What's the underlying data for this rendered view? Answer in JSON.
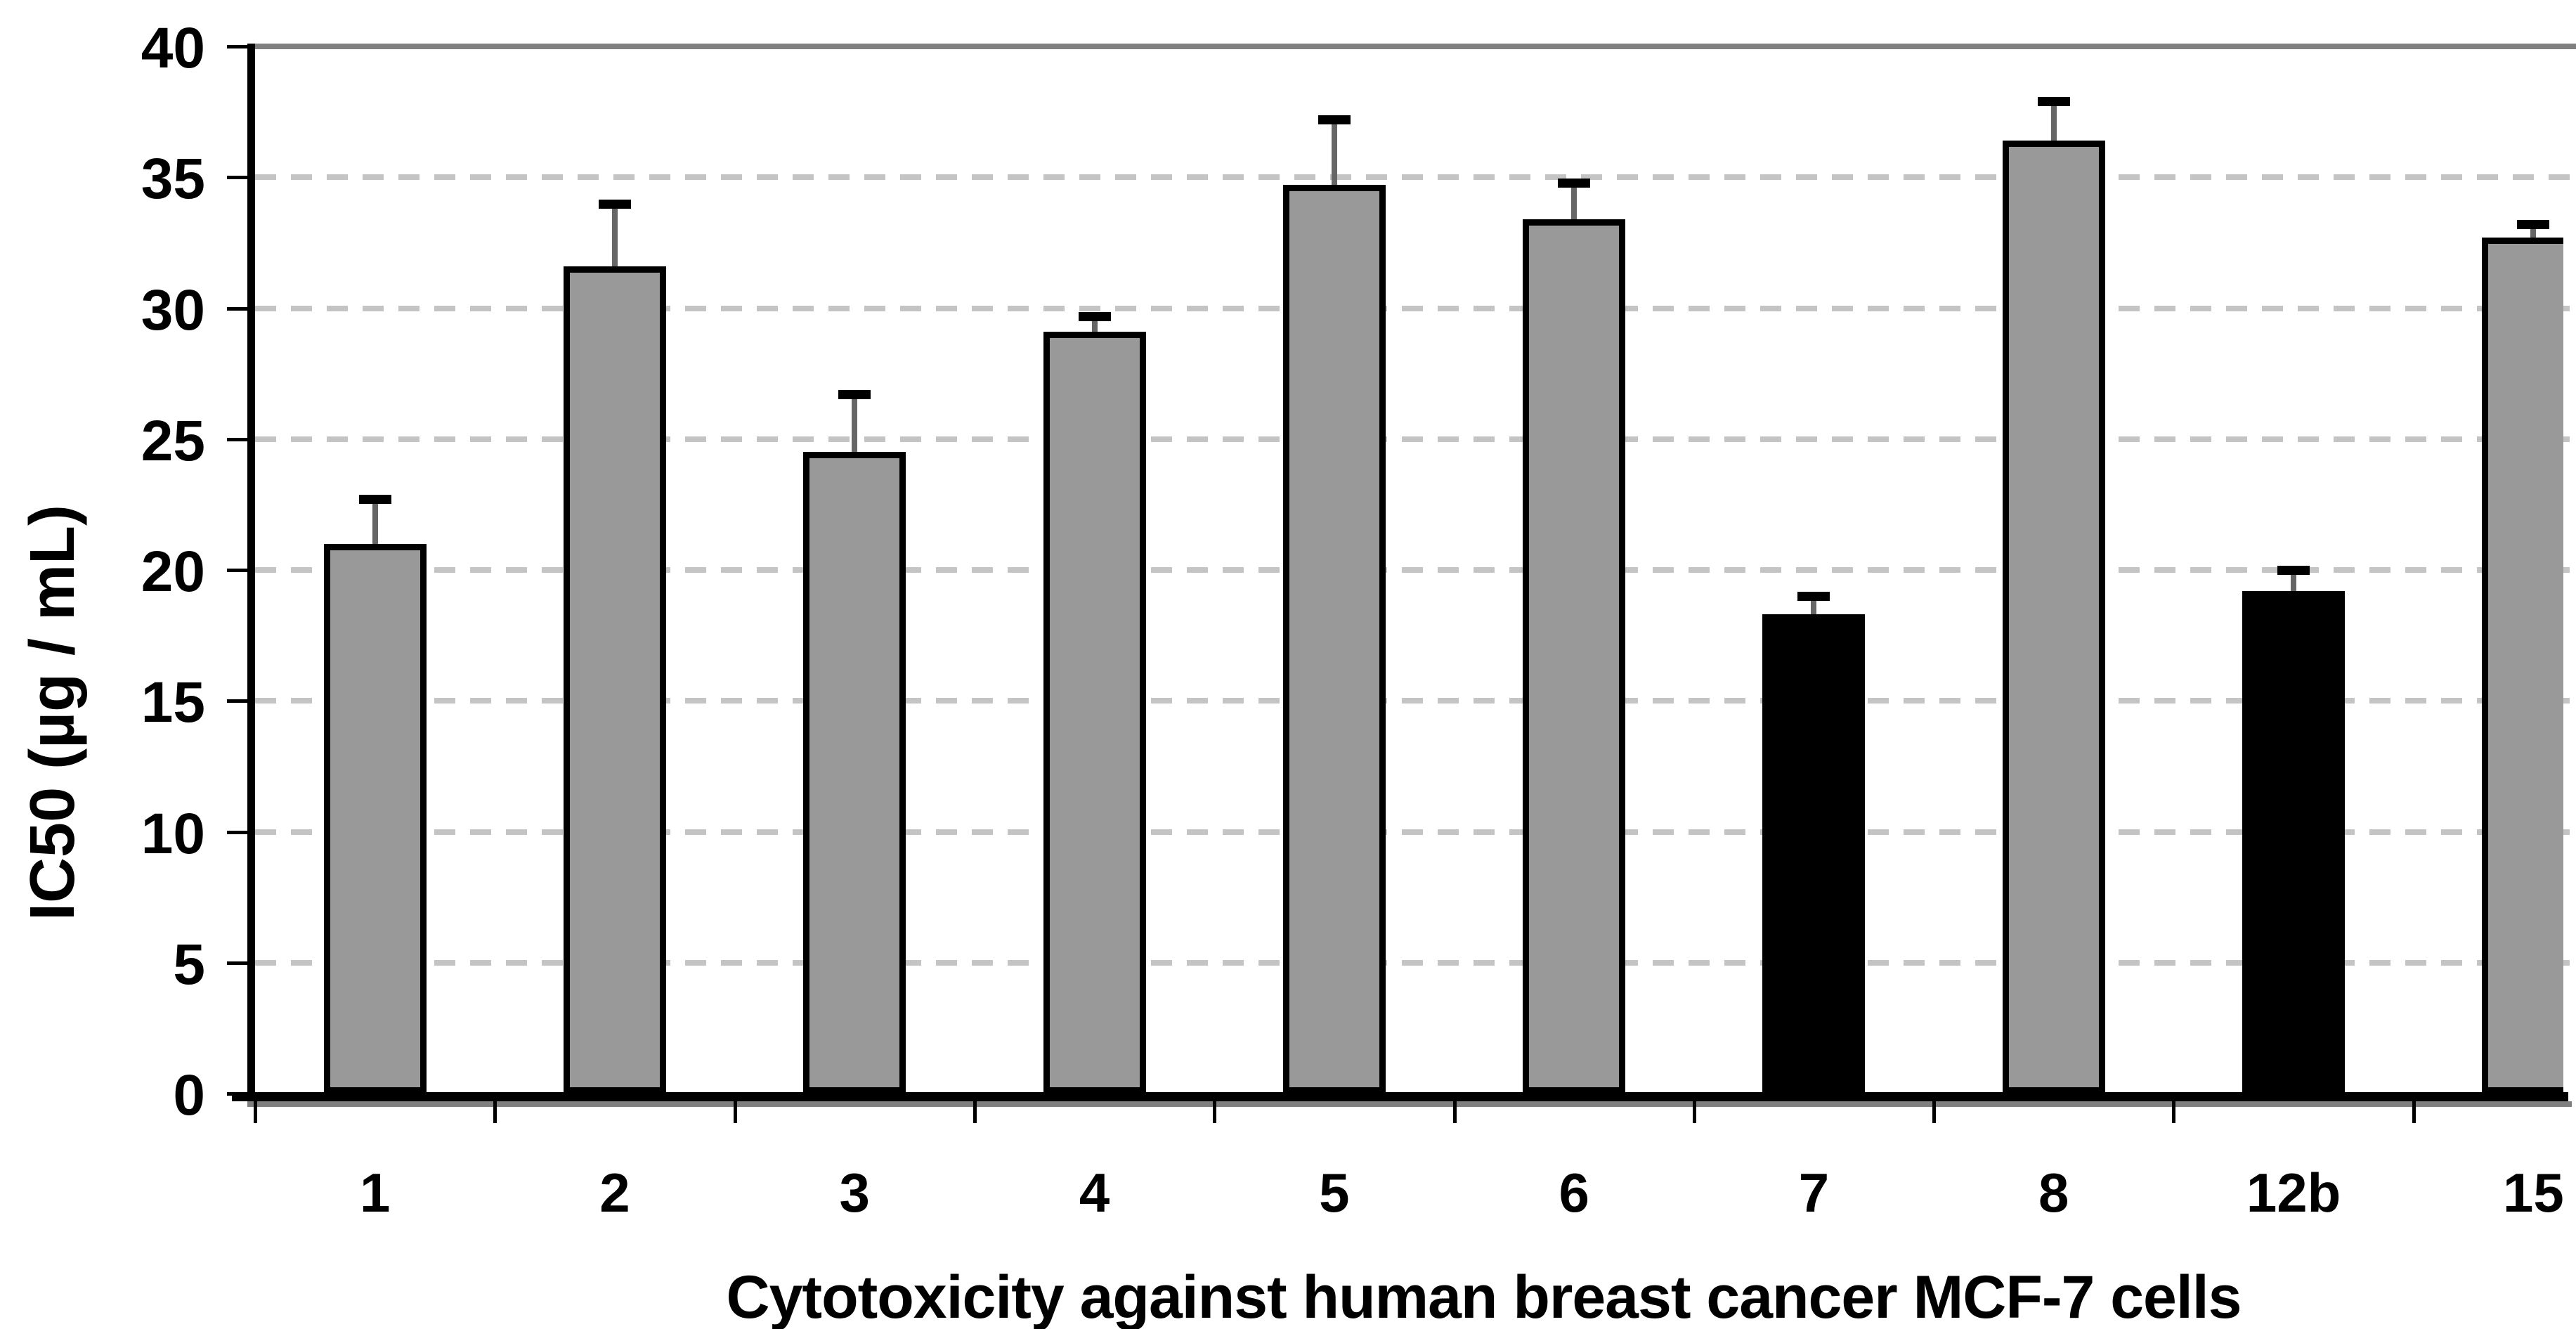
{
  "figure": {
    "title": "Cytotoxicity against human breast cancer MCF-7 cells",
    "y_axis_label": "IC50 (µg / mL)"
  },
  "chart_data": {
    "type": "bar",
    "title": "Cytotoxicity against human breast cancer MCF-7 cells",
    "xlabel": "Cytotoxicity against human breast cancer MCF-7 cells",
    "ylabel": "IC50 (µg / mL)",
    "categories": [
      "1",
      "2",
      "3",
      "4",
      "5",
      "6",
      "7",
      "8",
      "12b",
      "15"
    ],
    "values": [
      21.0,
      31.6,
      24.5,
      29.1,
      34.7,
      33.4,
      18.3,
      36.4,
      19.2,
      32.7
    ],
    "error_plus": [
      1.7,
      2.4,
      2.2,
      0.6,
      2.5,
      1.4,
      0.7,
      1.5,
      0.8,
      0.5
    ],
    "bar_colors": [
      "#999999",
      "#999999",
      "#999999",
      "#999999",
      "#999999",
      "#999999",
      "#000000",
      "#999999",
      "#000000",
      "#999999"
    ],
    "bar_border_color": "#000000",
    "error_whisker_color": "#666666",
    "error_cap_color": "#000000",
    "gridline_color": "#c4c4c4",
    "axis_color": "#000000",
    "top_border_color": "#808080",
    "ylim": [
      0,
      40
    ],
    "yticks": [
      0,
      5,
      10,
      15,
      20,
      25,
      30,
      35,
      40
    ],
    "grid": "horizontal-dashed",
    "legend": "none",
    "last_bar_clipped": true
  }
}
